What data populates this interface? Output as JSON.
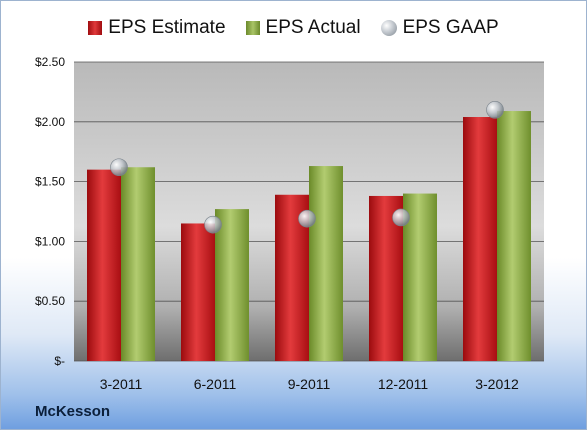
{
  "chart_data": {
    "type": "bar",
    "categories": [
      "3-2011",
      "6-2011",
      "9-2011",
      "12-2011",
      "3-2012"
    ],
    "series": [
      {
        "name": "EPS Estimate",
        "values": [
          1.6,
          1.15,
          1.39,
          1.38,
          2.04
        ],
        "color": "#c81e22"
      },
      {
        "name": "EPS Actual",
        "values": [
          1.62,
          1.27,
          1.63,
          1.4,
          2.09
        ],
        "color": "#93b04a"
      },
      {
        "name": "EPS GAAP",
        "values": [
          1.62,
          1.14,
          1.19,
          1.2,
          2.1
        ],
        "color": "#b6bcc3",
        "style": "marker"
      }
    ],
    "ylim": [
      0,
      2.5
    ],
    "yticks": [
      {
        "value": 2.5,
        "label": "$2.50"
      },
      {
        "value": 2.0,
        "label": "$2.00"
      },
      {
        "value": 1.5,
        "label": "$1.50"
      },
      {
        "value": 1.0,
        "label": "$1.00"
      },
      {
        "value": 0.5,
        "label": "$0.50"
      },
      {
        "value": 0,
        "label": "$-"
      }
    ],
    "grid": true,
    "legend_position": "top",
    "title": "",
    "xlabel": "",
    "ylabel": ""
  },
  "company": "McKesson"
}
